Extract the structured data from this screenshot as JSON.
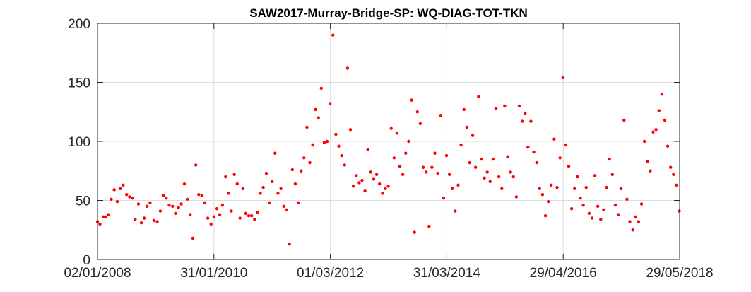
{
  "chart_data": {
    "type": "scatter",
    "title": "SAW2017-Murray-Bridge-SP: WQ-DIAG-TOT-TKN",
    "xlabel": "",
    "ylabel": "",
    "xlim": [
      "2008-01-02",
      "2018-05-29"
    ],
    "ylim": [
      0,
      200
    ],
    "x_ticks": [
      "2008-01-02",
      "2010-01-31",
      "2012-03-01",
      "2014-03-31",
      "2016-04-29",
      "2018-05-29"
    ],
    "x_tick_labels": [
      "02/01/2008",
      "31/01/2010",
      "01/03/2012",
      "31/03/2014",
      "29/04/2016",
      "29/05/2018"
    ],
    "y_ticks": [
      0,
      50,
      100,
      150,
      200
    ],
    "y_tick_labels": [
      "0",
      "50",
      "100",
      "150",
      "200"
    ],
    "grid": true,
    "marker_color": "#ff0000",
    "series": [
      {
        "points": [
          [
            "2008-01-02",
            32
          ],
          [
            "2008-01-18",
            30
          ],
          [
            "2008-02-08",
            36
          ],
          [
            "2008-02-25",
            36
          ],
          [
            "2008-03-12",
            38
          ],
          [
            "2008-04-01",
            51
          ],
          [
            "2008-04-20",
            59
          ],
          [
            "2008-05-10",
            49
          ],
          [
            "2008-05-30",
            60
          ],
          [
            "2008-06-18",
            63
          ],
          [
            "2008-07-10",
            55
          ],
          [
            "2008-07-29",
            53
          ],
          [
            "2008-08-18",
            52
          ],
          [
            "2008-09-04",
            34
          ],
          [
            "2008-09-25",
            47
          ],
          [
            "2008-10-14",
            31
          ],
          [
            "2008-11-02",
            35
          ],
          [
            "2008-11-20",
            45
          ],
          [
            "2008-12-10",
            48
          ],
          [
            "2009-01-05",
            33
          ],
          [
            "2009-01-26",
            32
          ],
          [
            "2009-02-15",
            41
          ],
          [
            "2009-03-06",
            54
          ],
          [
            "2009-03-25",
            52
          ],
          [
            "2009-04-14",
            46
          ],
          [
            "2009-05-06",
            45
          ],
          [
            "2009-05-25",
            39
          ],
          [
            "2009-06-14",
            44
          ],
          [
            "2009-07-02",
            47
          ],
          [
            "2009-07-22",
            64
          ],
          [
            "2009-08-10",
            51
          ],
          [
            "2009-08-29",
            38
          ],
          [
            "2009-09-15",
            18
          ],
          [
            "2009-10-05",
            80
          ],
          [
            "2009-10-24",
            55
          ],
          [
            "2009-11-14",
            54
          ],
          [
            "2009-12-03",
            48
          ],
          [
            "2009-12-22",
            35
          ],
          [
            "2010-01-12",
            30
          ],
          [
            "2010-01-31",
            36
          ],
          [
            "2010-02-20",
            43
          ],
          [
            "2010-03-10",
            38
          ],
          [
            "2010-03-28",
            46
          ],
          [
            "2010-04-17",
            70
          ],
          [
            "2010-05-06",
            56
          ],
          [
            "2010-05-25",
            41
          ],
          [
            "2010-06-13",
            72
          ],
          [
            "2010-07-02",
            64
          ],
          [
            "2010-07-20",
            35
          ],
          [
            "2010-08-08",
            60
          ],
          [
            "2010-08-27",
            39
          ],
          [
            "2010-09-15",
            37
          ],
          [
            "2010-10-04",
            37
          ],
          [
            "2010-10-23",
            34
          ],
          [
            "2010-11-11",
            40
          ],
          [
            "2010-11-30",
            56
          ],
          [
            "2010-12-19",
            61
          ],
          [
            "2011-01-08",
            73
          ],
          [
            "2011-01-27",
            48
          ],
          [
            "2011-02-15",
            66
          ],
          [
            "2011-03-06",
            90
          ],
          [
            "2011-03-25",
            56
          ],
          [
            "2011-04-13",
            60
          ],
          [
            "2011-05-02",
            45
          ],
          [
            "2011-05-20",
            42
          ],
          [
            "2011-06-08",
            13
          ],
          [
            "2011-06-27",
            76
          ],
          [
            "2011-07-16",
            64
          ],
          [
            "2011-08-04",
            48
          ],
          [
            "2011-08-23",
            75
          ],
          [
            "2011-09-11",
            86
          ],
          [
            "2011-09-30",
            112
          ],
          [
            "2011-10-19",
            82
          ],
          [
            "2011-11-07",
            97
          ],
          [
            "2011-11-25",
            127
          ],
          [
            "2011-12-14",
            120
          ],
          [
            "2012-01-02",
            145
          ],
          [
            "2012-01-21",
            99
          ],
          [
            "2012-02-09",
            100
          ],
          [
            "2012-02-28",
            132
          ],
          [
            "2012-03-18",
            190
          ],
          [
            "2012-04-06",
            106
          ],
          [
            "2012-04-25",
            96
          ],
          [
            "2012-05-14",
            88
          ],
          [
            "2012-06-02",
            80
          ],
          [
            "2012-06-21",
            162
          ],
          [
            "2012-07-10",
            110
          ],
          [
            "2012-07-29",
            62
          ],
          [
            "2012-08-17",
            71
          ],
          [
            "2012-09-05",
            65
          ],
          [
            "2012-09-24",
            67
          ],
          [
            "2012-10-13",
            58
          ],
          [
            "2012-11-01",
            93
          ],
          [
            "2012-11-20",
            74
          ],
          [
            "2012-12-09",
            68
          ],
          [
            "2012-12-28",
            72
          ],
          [
            "2013-01-16",
            64
          ],
          [
            "2013-02-04",
            56
          ],
          [
            "2013-02-23",
            60
          ],
          [
            "2013-03-14",
            62
          ],
          [
            "2013-04-02",
            111
          ],
          [
            "2013-04-21",
            86
          ],
          [
            "2013-05-10",
            107
          ],
          [
            "2013-05-29",
            79
          ],
          [
            "2013-06-17",
            72
          ],
          [
            "2013-07-06",
            90
          ],
          [
            "2013-07-25",
            100
          ],
          [
            "2013-08-13",
            135
          ],
          [
            "2013-09-01",
            23
          ],
          [
            "2013-09-20",
            125
          ],
          [
            "2013-10-09",
            115
          ],
          [
            "2013-10-28",
            78
          ],
          [
            "2013-11-16",
            74
          ],
          [
            "2013-12-05",
            28
          ],
          [
            "2013-12-24",
            78
          ],
          [
            "2014-01-12",
            90
          ],
          [
            "2014-01-31",
            73
          ],
          [
            "2014-02-19",
            122
          ],
          [
            "2014-03-10",
            52
          ],
          [
            "2014-03-29",
            88
          ],
          [
            "2014-04-17",
            72
          ],
          [
            "2014-05-06",
            60
          ],
          [
            "2014-05-25",
            41
          ],
          [
            "2014-06-13",
            63
          ],
          [
            "2014-07-02",
            97
          ],
          [
            "2014-07-21",
            127
          ],
          [
            "2014-08-09",
            112
          ],
          [
            "2014-08-28",
            82
          ],
          [
            "2014-09-16",
            105
          ],
          [
            "2014-10-05",
            78
          ],
          [
            "2014-10-24",
            138
          ],
          [
            "2014-11-12",
            85
          ],
          [
            "2014-12-01",
            69
          ],
          [
            "2014-12-20",
            74
          ],
          [
            "2015-01-08",
            66
          ],
          [
            "2015-01-27",
            85
          ],
          [
            "2015-02-15",
            128
          ],
          [
            "2015-03-06",
            70
          ],
          [
            "2015-03-25",
            60
          ],
          [
            "2015-04-13",
            130
          ],
          [
            "2015-05-02",
            87
          ],
          [
            "2015-05-21",
            74
          ],
          [
            "2015-06-09",
            70
          ],
          [
            "2015-06-28",
            53
          ],
          [
            "2015-07-17",
            130
          ],
          [
            "2015-08-05",
            117
          ],
          [
            "2015-08-24",
            124
          ],
          [
            "2015-09-12",
            95
          ],
          [
            "2015-10-01",
            117
          ],
          [
            "2015-10-20",
            91
          ],
          [
            "2015-11-08",
            82
          ],
          [
            "2015-11-27",
            60
          ],
          [
            "2015-12-16",
            55
          ],
          [
            "2016-01-04",
            37
          ],
          [
            "2016-01-23",
            49
          ],
          [
            "2016-02-11",
            63
          ],
          [
            "2016-03-01",
            102
          ],
          [
            "2016-03-20",
            61
          ],
          [
            "2016-04-08",
            86
          ],
          [
            "2016-04-27",
            154
          ],
          [
            "2016-05-16",
            97
          ],
          [
            "2016-06-04",
            79
          ],
          [
            "2016-06-23",
            43
          ],
          [
            "2016-07-12",
            60
          ],
          [
            "2016-07-31",
            70
          ],
          [
            "2016-08-19",
            52
          ],
          [
            "2016-09-07",
            46
          ],
          [
            "2016-09-26",
            61
          ],
          [
            "2016-10-15",
            39
          ],
          [
            "2016-11-03",
            35
          ],
          [
            "2016-11-22",
            71
          ],
          [
            "2016-12-11",
            45
          ],
          [
            "2016-12-30",
            34
          ],
          [
            "2017-01-18",
            42
          ],
          [
            "2017-02-06",
            61
          ],
          [
            "2017-02-25",
            85
          ],
          [
            "2017-03-16",
            72
          ],
          [
            "2017-04-04",
            46
          ],
          [
            "2017-04-23",
            38
          ],
          [
            "2017-05-12",
            60
          ],
          [
            "2017-05-31",
            118
          ],
          [
            "2017-06-19",
            51
          ],
          [
            "2017-07-08",
            32
          ],
          [
            "2017-07-27",
            25
          ],
          [
            "2017-08-15",
            36
          ],
          [
            "2017-09-03",
            32
          ],
          [
            "2017-09-22",
            47
          ],
          [
            "2017-10-11",
            100
          ],
          [
            "2017-10-30",
            83
          ],
          [
            "2017-11-18",
            75
          ],
          [
            "2017-12-07",
            108
          ],
          [
            "2017-12-26",
            110
          ],
          [
            "2018-01-14",
            126
          ],
          [
            "2018-02-02",
            140
          ],
          [
            "2018-02-21",
            118
          ],
          [
            "2018-03-12",
            96
          ],
          [
            "2018-03-31",
            78
          ],
          [
            "2018-04-19",
            72
          ],
          [
            "2018-05-08",
            63
          ],
          [
            "2018-05-27",
            41
          ]
        ]
      }
    ]
  }
}
